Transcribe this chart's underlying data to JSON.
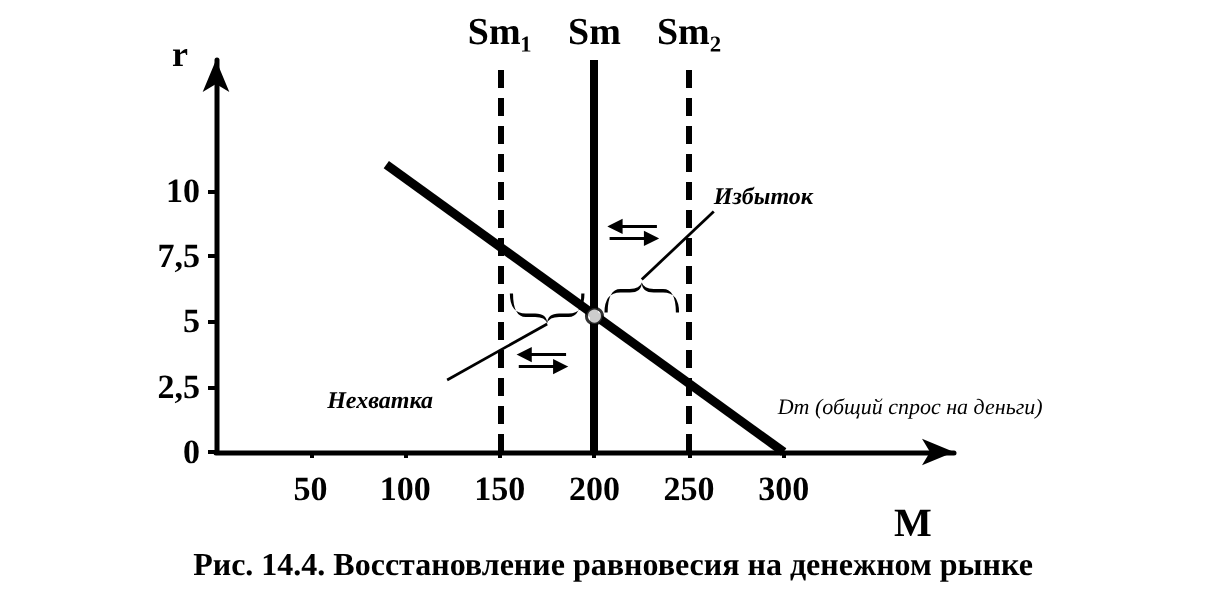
{
  "chart_data": {
    "type": "line",
    "title": "Рис. 14.4. Восстановление равновесия на денежном рынке",
    "xlabel": "M",
    "ylabel": "r",
    "series": [
      {
        "name": "Dm (общий спрос на деньги)",
        "color": "#000000",
        "x": [
          90,
          300
        ],
        "values": [
          11,
          0
        ],
        "line_style": "solid"
      },
      {
        "type": "scatter",
        "color": "#000000",
        "x": [
          200
        ],
        "values": [
          5.2
        ],
        "marker": "circle"
      }
    ],
    "annotations": [
      "Избыток",
      "Нехватка"
    ],
    "ref_lines": [
      {
        "axis": "x",
        "value": 150,
        "label": "Sm₁",
        "color": "#000000",
        "line_style": "dashed"
      },
      {
        "axis": "x",
        "value": 200,
        "label": "Sm",
        "color": "#000000",
        "line_style": "solid"
      },
      {
        "axis": "x",
        "value": 250,
        "label": "Sm₂",
        "color": "#000000",
        "line_style": "dashed"
      }
    ],
    "xlim": [
      0,
      390
    ],
    "ylim": [
      0,
      15
    ],
    "xticks": [
      50,
      100,
      150,
      200,
      250,
      300
    ],
    "yticks": [
      0,
      {
        "value": 2.5,
        "label": "2,5"
      },
      5,
      {
        "value": 7.5,
        "label": "7,5"
      },
      10
    ],
    "grid": false,
    "legend": false,
    "marker": "none"
  }
}
